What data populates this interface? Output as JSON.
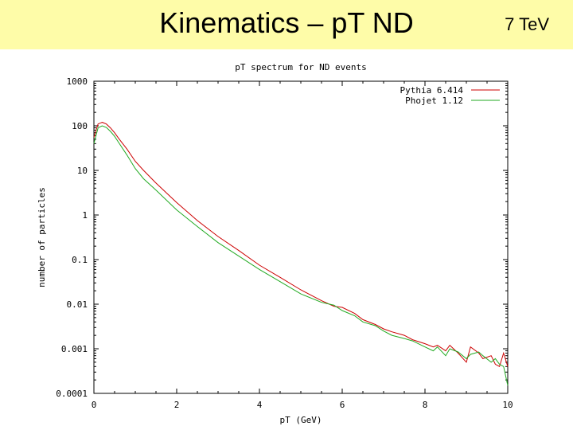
{
  "slide": {
    "title": "Kinematics – pT ND",
    "energy": "7 TeV"
  },
  "colors": {
    "title_bg": "#fefca8",
    "pythia": "#cc0000",
    "phojet": "#22aa22"
  },
  "chart_data": {
    "type": "line",
    "title": "pT spectrum for ND events",
    "xlabel": "pT (GeV)",
    "ylabel": "number of particles",
    "xlim": [
      0,
      10
    ],
    "ylim": [
      0.0001,
      1000
    ],
    "yscale": "log",
    "grid": false,
    "legend_position": "top-right",
    "xticks": [
      0,
      2,
      4,
      6,
      8,
      10
    ],
    "xtick_labels": [
      "0",
      "2",
      "4",
      "6",
      "8",
      "10"
    ],
    "yticks": [
      1000,
      100,
      10,
      1,
      0.1,
      0.01,
      0.001,
      0.0001
    ],
    "ytick_labels": [
      "1000",
      "100",
      "10",
      "1",
      "0.1",
      "0.01",
      "0.001",
      "0.0001"
    ],
    "series": [
      {
        "name": "Pythia 6.414",
        "x": [
          0,
          0.1,
          0.2,
          0.3,
          0.4,
          0.5,
          0.6,
          0.8,
          1.0,
          1.2,
          1.5,
          2.0,
          2.5,
          3.0,
          3.5,
          4.0,
          4.5,
          5.0,
          5.5,
          5.8,
          6.0,
          6.3,
          6.5,
          6.8,
          7.0,
          7.2,
          7.5,
          7.7,
          8.0,
          8.2,
          8.3,
          8.5,
          8.6,
          8.8,
          9.0,
          9.1,
          9.3,
          9.4,
          9.6,
          9.7,
          9.8,
          9.9,
          10.0
        ],
        "y": [
          55,
          110,
          120,
          110,
          90,
          70,
          52,
          30,
          16,
          10,
          5.2,
          1.9,
          0.75,
          0.33,
          0.16,
          0.075,
          0.04,
          0.021,
          0.012,
          0.009,
          0.0085,
          0.0062,
          0.0045,
          0.0035,
          0.0028,
          0.0024,
          0.002,
          0.0016,
          0.0013,
          0.0011,
          0.0012,
          0.0009,
          0.0012,
          0.0008,
          0.0005,
          0.0011,
          0.0008,
          0.0006,
          0.0007,
          0.00045,
          0.0004,
          0.0008,
          0.0004
        ]
      },
      {
        "name": "Phojet 1.12",
        "x": [
          0,
          0.1,
          0.2,
          0.3,
          0.4,
          0.5,
          0.6,
          0.8,
          1.0,
          1.2,
          1.5,
          2.0,
          2.5,
          3.0,
          3.5,
          4.0,
          4.5,
          5.0,
          5.5,
          5.8,
          6.0,
          6.3,
          6.5,
          6.8,
          7.0,
          7.2,
          7.5,
          7.7,
          8.0,
          8.2,
          8.3,
          8.5,
          8.6,
          8.8,
          9.0,
          9.1,
          9.3,
          9.4,
          9.6,
          9.7,
          9.8,
          9.9,
          10.0
        ],
        "y": [
          40,
          90,
          100,
          92,
          75,
          58,
          42,
          22,
          11,
          6.5,
          3.6,
          1.3,
          0.55,
          0.24,
          0.12,
          0.06,
          0.032,
          0.017,
          0.011,
          0.0095,
          0.0072,
          0.0055,
          0.004,
          0.0033,
          0.0025,
          0.002,
          0.0017,
          0.0015,
          0.0011,
          0.0009,
          0.0011,
          0.0007,
          0.001,
          0.00085,
          0.0006,
          0.00075,
          0.00085,
          0.0007,
          0.0005,
          0.0006,
          0.00045,
          0.0004,
          0.00015
        ]
      }
    ]
  }
}
